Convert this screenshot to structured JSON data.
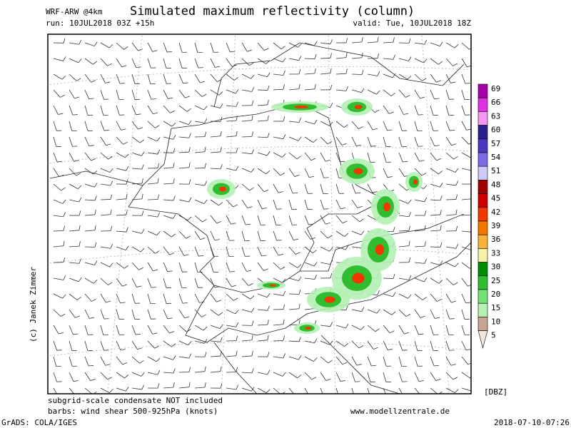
{
  "header": {
    "model": "WRF-ARW @4km",
    "title": "Simulated maximum reflectivity (column)",
    "run": "run: 10JUL2018 03Z +15h",
    "valid": "valid: Tue, 10JUL2018 18Z"
  },
  "credit": "(c) Janek Zimmer",
  "notes": {
    "condensate": "subgrid-scale condensate NOT included",
    "barbs": "barbs: wind shear 500-925hPa (knots)",
    "website": "www.modellzentrale.de"
  },
  "legend": {
    "unit": "[DBZ]",
    "levels": [
      {
        "value": 69,
        "color": "#a800a8"
      },
      {
        "value": 66,
        "color": "#e030e0"
      },
      {
        "value": 63,
        "color": "#f498f4"
      },
      {
        "value": 60,
        "color": "#28208c"
      },
      {
        "value": 57,
        "color": "#4838c0"
      },
      {
        "value": 54,
        "color": "#7a6ae4"
      },
      {
        "value": 51,
        "color": "#cccaf6"
      },
      {
        "value": 48,
        "color": "#a00000"
      },
      {
        "value": 45,
        "color": "#cc0000"
      },
      {
        "value": 42,
        "color": "#f03800"
      },
      {
        "value": 39,
        "color": "#f47800"
      },
      {
        "value": 36,
        "color": "#f8b43a"
      },
      {
        "value": 33,
        "color": "#f8f2a8"
      },
      {
        "value": 30,
        "color": "#008c00"
      },
      {
        "value": 25,
        "color": "#30be30"
      },
      {
        "value": 20,
        "color": "#78e078"
      },
      {
        "value": 15,
        "color": "#b4f0b4"
      },
      {
        "value": 10,
        "color": "#c8a494"
      },
      {
        "value": 5,
        "color": "#f4e4dc"
      }
    ]
  },
  "footer": {
    "software": "GrADS: COLA/IGES",
    "timestamp": "2018-07-10-07:26"
  }
}
